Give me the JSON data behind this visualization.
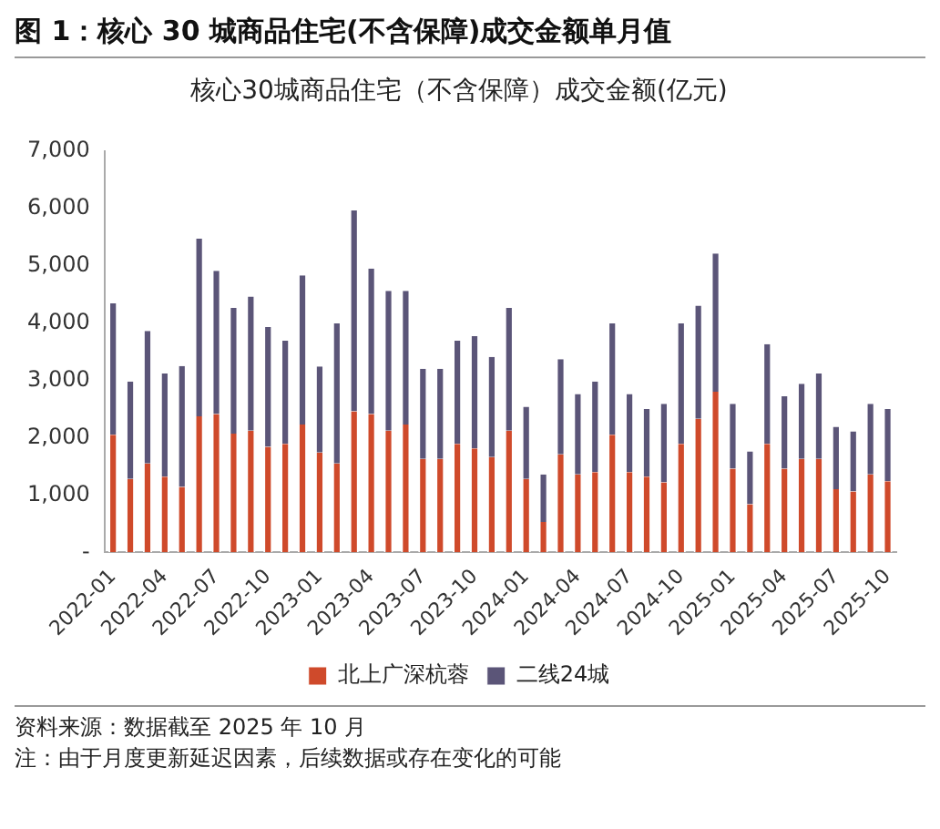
{
  "chart_data": {
    "type": "bar",
    "title": "图 1：核心 30 城商品住宅(不含保障)成交金额单月值",
    "subtitle": "核心30城商品住宅（不含保障）成交金额(亿元)",
    "categories": [
      "2022-01",
      null,
      null,
      "2022-04",
      null,
      null,
      "2022-07",
      null,
      null,
      "2022-10",
      null,
      null,
      "2023-01",
      null,
      null,
      "2023-04",
      null,
      null,
      "2023-07",
      null,
      null,
      "2023-10",
      null,
      null,
      "2024-01",
      null,
      null,
      "2024-04",
      null,
      null,
      "2024-07",
      null,
      null,
      "2024-10",
      null,
      null,
      "2025-01",
      null,
      null,
      "2025-04",
      null,
      null,
      "2025-07",
      null,
      null,
      "2025-10"
    ],
    "stacked": true,
    "series": [
      {
        "name": "北上广深杭蓉",
        "color": "#cf4a2b",
        "values": [
          2050,
          1280,
          1550,
          1320,
          1140,
          2370,
          2410,
          2070,
          2120,
          1840,
          1890,
          2230,
          1740,
          1550,
          2460,
          2410,
          2120,
          2230,
          1630,
          1630,
          1890,
          1810,
          1660,
          2120,
          1280,
          530,
          1710,
          1360,
          1400,
          2050,
          1400,
          1320,
          1220,
          1890,
          2330,
          2800,
          1460,
          840,
          1890,
          1460,
          1630,
          1630,
          1100,
          1060,
          1360,
          1240
        ]
      },
      {
        "name": "二线24城",
        "color": "#5b5578",
        "values": [
          2290,
          1700,
          2310,
          1800,
          2110,
          3100,
          2500,
          2190,
          2340,
          2090,
          1800,
          2600,
          1500,
          2440,
          3500,
          2540,
          2440,
          2330,
          1570,
          1570,
          1800,
          1960,
          1750,
          2140,
          1260,
          830,
          1660,
          1400,
          1580,
          1940,
          1360,
          1180,
          1370,
          2100,
          1970,
          2410,
          1130,
          920,
          1740,
          1260,
          1310,
          1490,
          1090,
          1050,
          1230,
          1260
        ]
      }
    ],
    "ylim": [
      0,
      7000
    ],
    "yticks": [
      {
        "value": 0,
        "label": "-"
      },
      {
        "value": 1000,
        "label": "1,000"
      },
      {
        "value": 2000,
        "label": "2,000"
      },
      {
        "value": 3000,
        "label": "3,000"
      },
      {
        "value": 4000,
        "label": "4,000"
      },
      {
        "value": 5000,
        "label": "5,000"
      },
      {
        "value": 6000,
        "label": "6,000"
      },
      {
        "value": 7000,
        "label": "7,000"
      }
    ],
    "grid": false,
    "legend": "bottom",
    "annotations": [
      "资料来源：数据截至 2025 年 10 月",
      "注：由于月度更新延迟因素，后续数据或存在变化的可能"
    ]
  }
}
